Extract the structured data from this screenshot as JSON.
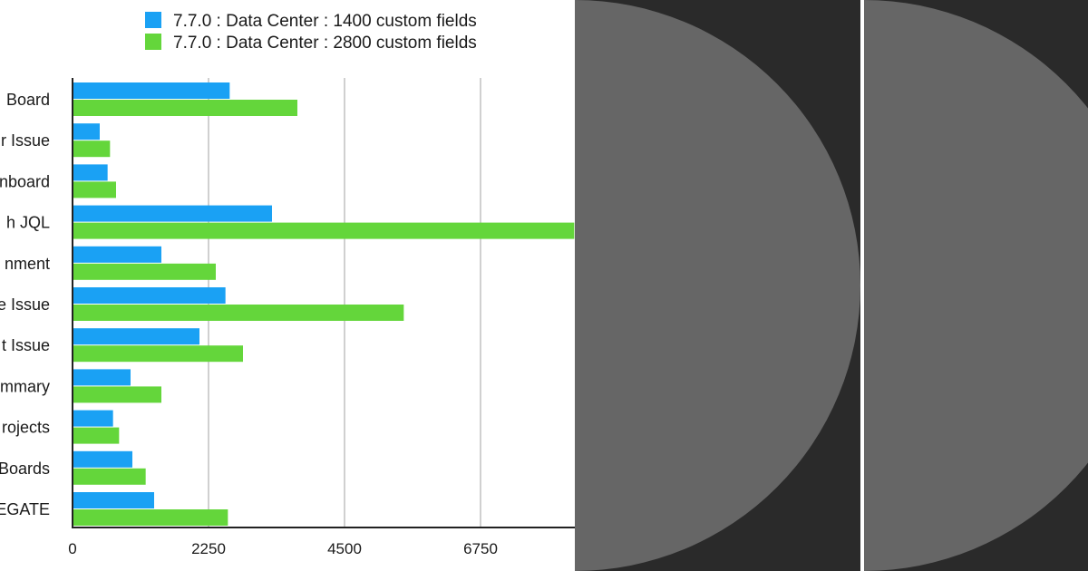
{
  "chart_data": {
    "type": "bar",
    "orientation": "horizontal",
    "categories": [
      "Board",
      "r Issue",
      "nboard",
      "h JQL",
      "nment",
      "e Issue",
      "t Issue",
      "mmary",
      "rojects",
      "Boards",
      "EGATE"
    ],
    "series": [
      {
        "name": "7.7.0 : Data Center : 1400 custom fields",
        "color": "#1aa1f4",
        "values": [
          2600,
          450,
          580,
          3300,
          1470,
          2530,
          2100,
          960,
          670,
          990,
          1350
        ]
      },
      {
        "name": "7.7.0 : Data Center : 2800 custom fields",
        "color": "#64d63b",
        "values": [
          3720,
          620,
          720,
          8300,
          2370,
          5480,
          2820,
          1470,
          770,
          1210,
          2570
        ]
      }
    ],
    "xlim": [
      0,
      8250
    ],
    "xticks": [
      "0",
      "2250",
      "4500",
      "6750"
    ],
    "grid": true,
    "legend": "top"
  },
  "colors": {
    "decor_background": "#2a2a2a",
    "decor_circle": "#666666",
    "decor_divider": "#ffffff",
    "gridline": "#c0c0c0",
    "axis": "#222222"
  }
}
